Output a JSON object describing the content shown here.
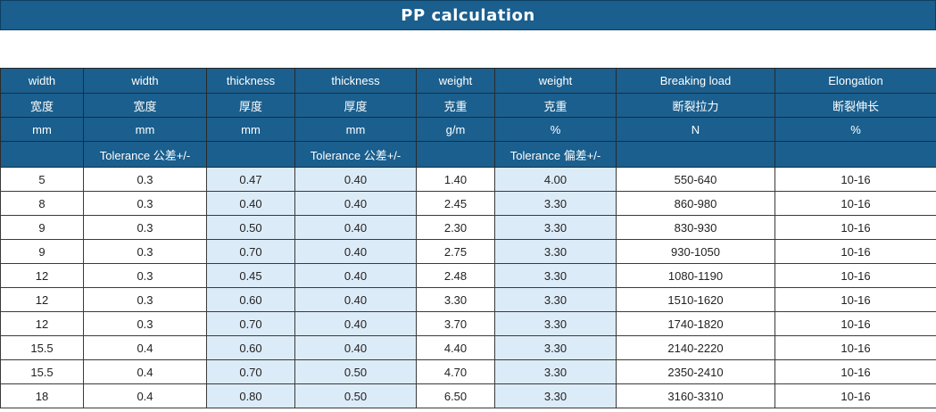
{
  "title": "PP calculation",
  "headers": {
    "row1": [
      "width",
      "width",
      "thickness",
      "thickness",
      "weight",
      "weight",
      "Breaking load",
      "Elongation"
    ],
    "row2": [
      "宽度",
      "宽度",
      "厚度",
      "厚度",
      "克重",
      "克重",
      "断裂拉力",
      "断裂伸长"
    ],
    "row3": [
      "mm",
      "mm",
      "mm",
      "mm",
      "g/m",
      "%",
      "N",
      "%"
    ],
    "row4": [
      "",
      "Tolerance 公差+/-",
      "",
      "Tolerance 公差+/-",
      "",
      "Tolerance 偏差+/-",
      "",
      ""
    ]
  },
  "rows": [
    [
      "5",
      "0.3",
      "0.47",
      "0.40",
      "1.40",
      "4.00",
      "550-640",
      "10-16"
    ],
    [
      "8",
      "0.3",
      "0.40",
      "0.40",
      "2.45",
      "3.30",
      "860-980",
      "10-16"
    ],
    [
      "9",
      "0.3",
      "0.50",
      "0.40",
      "2.30",
      "3.30",
      "830-930",
      "10-16"
    ],
    [
      "9",
      "0.3",
      "0.70",
      "0.40",
      "2.75",
      "3.30",
      "930-1050",
      "10-16"
    ],
    [
      "12",
      "0.3",
      "0.45",
      "0.40",
      "2.48",
      "3.30",
      "1080-1190",
      "10-16"
    ],
    [
      "12",
      "0.3",
      "0.60",
      "0.40",
      "3.30",
      "3.30",
      "1510-1620",
      "10-16"
    ],
    [
      "12",
      "0.3",
      "0.70",
      "0.40",
      "3.70",
      "3.30",
      "1740-1820",
      "10-16"
    ],
    [
      "15.5",
      "0.4",
      "0.60",
      "0.40",
      "4.40",
      "3.30",
      "2140-2220",
      "10-16"
    ],
    [
      "15.5",
      "0.4",
      "0.70",
      "0.50",
      "4.70",
      "3.30",
      "2350-2410",
      "10-16"
    ],
    [
      "18",
      "0.4",
      "0.80",
      "0.50",
      "6.50",
      "3.30",
      "3160-3310",
      "10-16"
    ]
  ],
  "colors": {
    "header_bg": "#1a5f8e",
    "tint_bg": "#dcebf8"
  }
}
